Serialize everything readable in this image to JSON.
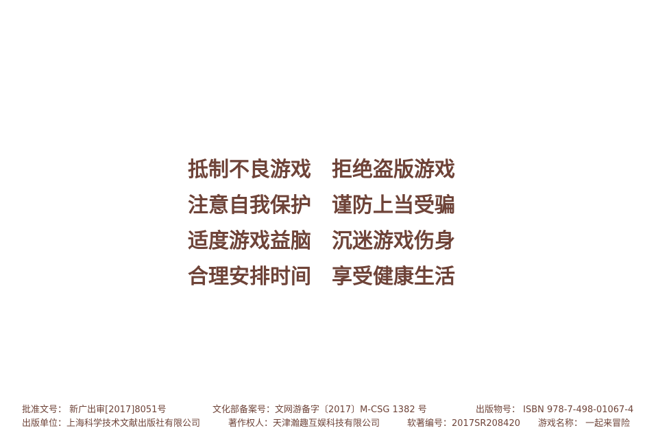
{
  "advisory": {
    "rows": [
      {
        "left": "抵制不良游戏",
        "right": "拒绝盗版游戏"
      },
      {
        "left": "注意自我保护",
        "right": "谨防上当受骗"
      },
      {
        "left": "适度游戏益脑",
        "right": "沉迷游戏伤身"
      },
      {
        "left": "合理安排时间",
        "right": "享受健康生活"
      }
    ]
  },
  "footer": {
    "approval_no": "批准文号： 新广出审[2017]8051号",
    "culture_record_no": "文化部备案号：文网游备字〔2017〕M-CSG 1382 号",
    "publication_no": "出版物号： ISBN 978-7-498-01067-4",
    "publisher": "出版单位：上海科学技术文献出版社有限公司",
    "copyright_owner": "著作权人：天津瀚趣互娱科技有限公司",
    "software_reg_no": "软著编号：2017SR208420",
    "game_name": "游戏名称： 一起来冒险"
  },
  "colors": {
    "text": "#6e4338",
    "background": "#ffffff"
  }
}
